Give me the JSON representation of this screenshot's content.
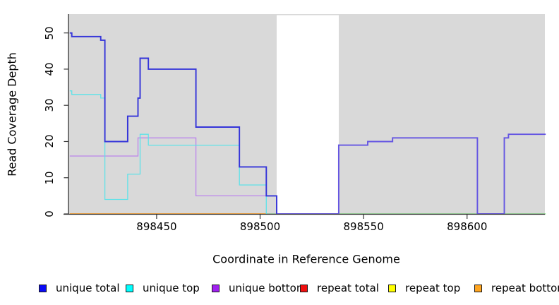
{
  "chart_data": {
    "type": "line",
    "subtype": "step-coverage-plot",
    "title": "",
    "xlabel": "Coordinate in Reference Genome",
    "ylabel": "Read Coverage Depth",
    "xlim": [
      898407.4,
      898637.6
    ],
    "ylim": [
      0,
      55.2
    ],
    "grid": false,
    "plot_background": "#d9d9d9",
    "masked_region": {
      "start": 898508,
      "end": 898538,
      "fill": "#ffffff"
    },
    "x_ticks": [
      898450,
      898500,
      898550,
      898600
    ],
    "x_tick_labels": [
      "898450",
      "898500",
      "898550",
      "898600"
    ],
    "y_ticks": [
      0,
      10,
      20,
      30,
      40,
      50
    ],
    "y_tick_labels": [
      "0",
      "10",
      "20",
      "30",
      "40",
      "50"
    ],
    "series": [
      {
        "name": "unique total",
        "color": "#0000FF",
        "points": [
          [
            898408,
            50
          ],
          [
            898409,
            49
          ],
          [
            898423,
            48
          ],
          [
            898425,
            20
          ],
          [
            898436,
            27
          ],
          [
            898441,
            32
          ],
          [
            898442,
            43
          ],
          [
            898446,
            40
          ],
          [
            898469,
            24
          ],
          [
            898490,
            13
          ],
          [
            898503,
            5
          ],
          [
            898508,
            0
          ],
          [
            898538,
            19
          ],
          [
            898552,
            20
          ],
          [
            898564,
            21
          ],
          [
            898605,
            0
          ],
          [
            898618,
            21
          ],
          [
            898620,
            22
          ],
          [
            898638,
            22
          ]
        ]
      },
      {
        "name": "unique top",
        "color": "#00FFFF",
        "points": [
          [
            898408,
            34
          ],
          [
            898409,
            33
          ],
          [
            898423,
            32
          ],
          [
            898425,
            4
          ],
          [
            898436,
            11
          ],
          [
            898442,
            22
          ],
          [
            898446,
            19
          ],
          [
            898490,
            8
          ],
          [
            898503,
            0
          ],
          [
            898508,
            0
          ]
        ]
      },
      {
        "name": "unique bottom",
        "color": "#A020F0",
        "points": [
          [
            898408,
            16
          ],
          [
            898441,
            21
          ],
          [
            898469,
            5
          ],
          [
            898503,
            5
          ],
          [
            898508,
            0
          ]
        ]
      },
      {
        "name": "repeat total",
        "color": "#FF0000",
        "points": [
          [
            898408,
            0
          ],
          [
            898508,
            0
          ]
        ]
      },
      {
        "name": "repeat top",
        "color": "#FFFF00",
        "points": [
          [
            898408,
            0
          ],
          [
            898508,
            0
          ]
        ]
      },
      {
        "name": "repeat bottom",
        "color": "#FFA500",
        "points": [
          [
            898408,
            0
          ],
          [
            898508,
            0
          ]
        ]
      }
    ],
    "render_segments": [
      {
        "name": "repeat-bottom-zero-left",
        "color": "#FF9E26",
        "width": 1.8,
        "points": [
          [
            898408,
            0
          ],
          [
            898508,
            0
          ]
        ]
      },
      {
        "name": "zero-line-right",
        "color": "#84D884",
        "width": 1.4,
        "points": [
          [
            898538,
            0
          ],
          [
            898638,
            0
          ]
        ]
      },
      {
        "name": "unique-bottom-line",
        "color": "#BC85EC",
        "width": 1.3,
        "points": [
          [
            898408,
            16
          ],
          [
            898441,
            21
          ],
          [
            898469,
            5
          ],
          [
            898503,
            5
          ],
          [
            898508,
            0
          ]
        ]
      },
      {
        "name": "unique-top-line",
        "color": "#5FE2E8",
        "width": 1.3,
        "points": [
          [
            898408,
            34
          ],
          [
            898409,
            33
          ],
          [
            898423,
            32
          ],
          [
            898425,
            4
          ],
          [
            898436,
            11
          ],
          [
            898442,
            22
          ],
          [
            898446,
            19
          ],
          [
            898490,
            8
          ],
          [
            898503,
            0
          ],
          [
            898508,
            0
          ]
        ]
      },
      {
        "name": "unique-total-line-left",
        "color": "#3434D9",
        "width": 1.9,
        "points": [
          [
            898408,
            50
          ],
          [
            898409,
            49
          ],
          [
            898423,
            48
          ],
          [
            898425,
            20
          ],
          [
            898436,
            27
          ],
          [
            898441,
            32
          ],
          [
            898442,
            43
          ],
          [
            898446,
            40
          ],
          [
            898469,
            24
          ],
          [
            898490,
            13
          ],
          [
            898503,
            5
          ],
          [
            898508,
            0
          ]
        ]
      },
      {
        "name": "unique-total-line-right",
        "color": "#6455E2",
        "width": 1.9,
        "points": [
          [
            898508,
            0
          ],
          [
            898538,
            19
          ],
          [
            898552,
            20
          ],
          [
            898564,
            21
          ],
          [
            898605,
            0
          ],
          [
            898618,
            21
          ],
          [
            898620,
            22
          ],
          [
            898638,
            22
          ]
        ]
      }
    ],
    "legend": {
      "position": "bottom",
      "items": [
        {
          "label": "unique total",
          "color": "#0B0BF5"
        },
        {
          "label": "unique top",
          "color": "#00FFFF"
        },
        {
          "label": "unique bottom",
          "color": "#A020F0"
        },
        {
          "label": "repeat total",
          "color": "#F01010"
        },
        {
          "label": "repeat top",
          "color": "#FFFF00"
        },
        {
          "label": "repeat bottom",
          "color": "#FFA520"
        }
      ]
    }
  }
}
